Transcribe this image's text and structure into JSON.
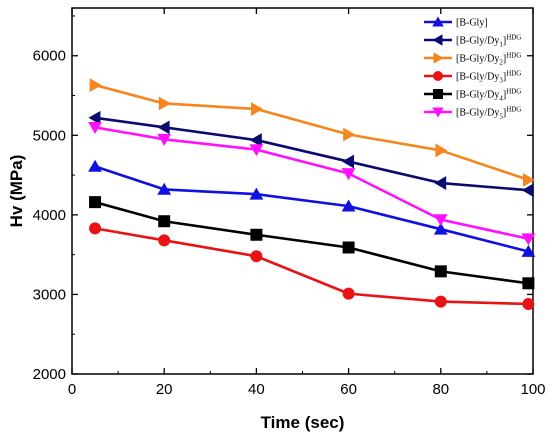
{
  "chart_data": {
    "type": "line",
    "xlabel": "Time (sec)",
    "ylabel": "Hv (MPa)",
    "xlim": [
      0,
      100
    ],
    "ylim": [
      2000,
      6600
    ],
    "xticks": [
      0,
      20,
      40,
      60,
      80,
      100
    ],
    "yticks": [
      2000,
      3000,
      4000,
      5000,
      6000
    ],
    "grid": false,
    "legend_position": "top-right",
    "x": [
      5,
      20,
      40,
      60,
      80,
      99
    ],
    "series": [
      {
        "name": "[B-Gly]",
        "sup": "",
        "sup_hdg": "",
        "color": "#1010e0",
        "marker": "triangle-up",
        "values": [
          4610,
          4320,
          4260,
          4110,
          3820,
          3540
        ]
      },
      {
        "name": "[B-Gly/Dy",
        "sub": "1",
        "sup_hdg": "HDG",
        "color": "#0a0a70",
        "marker": "triangle-left",
        "values": [
          5220,
          5100,
          4940,
          4670,
          4400,
          4310
        ]
      },
      {
        "name": "[B-Gly/Dy",
        "sub": "2",
        "sup_hdg": "HDG",
        "color": "#f5861f",
        "marker": "triangle-right",
        "values": [
          5630,
          5400,
          5330,
          5010,
          4810,
          4440
        ]
      },
      {
        "name": "[B-Gly/Dy",
        "sub": "3",
        "sup_hdg": "HDG",
        "color": "#e81414",
        "marker": "circle",
        "values": [
          3830,
          3680,
          3480,
          3010,
          2910,
          2880
        ]
      },
      {
        "name": "[B-Gly/Dy",
        "sub": "4",
        "sup_hdg": "HDG",
        "color": "#000000",
        "marker": "square",
        "values": [
          4160,
          3920,
          3750,
          3590,
          3290,
          3140
        ]
      },
      {
        "name": "[B-Gly/Dy",
        "sub": "5",
        "sup_hdg": "HDG",
        "color": "#ff10ff",
        "marker": "triangle-down",
        "values": [
          5100,
          4950,
          4820,
          4520,
          3940,
          3700
        ]
      }
    ]
  }
}
